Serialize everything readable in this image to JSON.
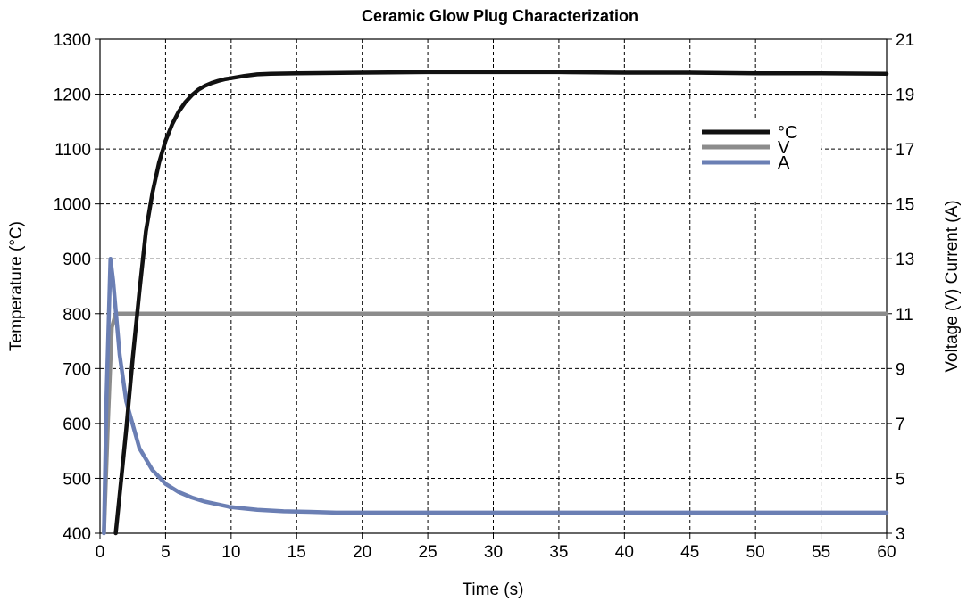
{
  "chart_data": {
    "type": "line",
    "title": "Ceramic Glow Plug Characterization",
    "xlabel": "Time (s)",
    "ylabel": "Temperature (°C)",
    "y2label": "Voltage (V) Current (A)",
    "xlim": [
      0,
      60
    ],
    "ylim": [
      400,
      1300
    ],
    "y2lim": [
      3,
      21
    ],
    "xticks": [
      0,
      5,
      10,
      15,
      20,
      25,
      30,
      35,
      40,
      45,
      50,
      55,
      60
    ],
    "yticks": [
      400,
      500,
      600,
      700,
      800,
      900,
      1000,
      1100,
      1200,
      1300
    ],
    "y2ticks": [
      3,
      5,
      7,
      9,
      11,
      13,
      15,
      17,
      19,
      21
    ],
    "grid": true,
    "legend_position": "top-right",
    "series": [
      {
        "name": "°C",
        "axis": "left",
        "color": "#111111",
        "x": [
          1.2,
          1.5,
          2,
          2.5,
          3,
          3.5,
          4,
          4.5,
          5,
          5.5,
          6,
          6.5,
          7,
          7.5,
          8,
          8.5,
          9,
          9.5,
          10,
          11,
          12,
          13,
          15,
          20,
          25,
          30,
          35,
          40,
          45,
          50,
          55,
          60
        ],
        "values": [
          400,
          470,
          590,
          720,
          840,
          950,
          1020,
          1075,
          1115,
          1145,
          1168,
          1185,
          1198,
          1208,
          1215,
          1220,
          1224,
          1227,
          1229,
          1233,
          1236,
          1237,
          1238,
          1239,
          1240,
          1240,
          1240,
          1239,
          1239,
          1238,
          1238,
          1237
        ]
      },
      {
        "name": "V",
        "axis": "right",
        "color": "#8c8c8c",
        "x": [
          0.3,
          0.6,
          0.9,
          1.2,
          60
        ],
        "values": [
          3,
          7,
          10.5,
          11,
          11
        ]
      },
      {
        "name": "A",
        "axis": "right",
        "color": "#6b7fb4",
        "x": [
          0.3,
          0.5,
          0.8,
          1.0,
          1.5,
          2,
          3,
          4,
          5,
          6,
          7,
          8,
          10,
          12,
          14,
          16,
          18,
          20,
          30,
          40,
          50,
          60
        ],
        "values": [
          3,
          8,
          13,
          12.2,
          9.5,
          7.8,
          6.1,
          5.3,
          4.8,
          4.5,
          4.3,
          4.15,
          3.95,
          3.85,
          3.8,
          3.78,
          3.75,
          3.75,
          3.75,
          3.75,
          3.75,
          3.75
        ]
      }
    ]
  }
}
